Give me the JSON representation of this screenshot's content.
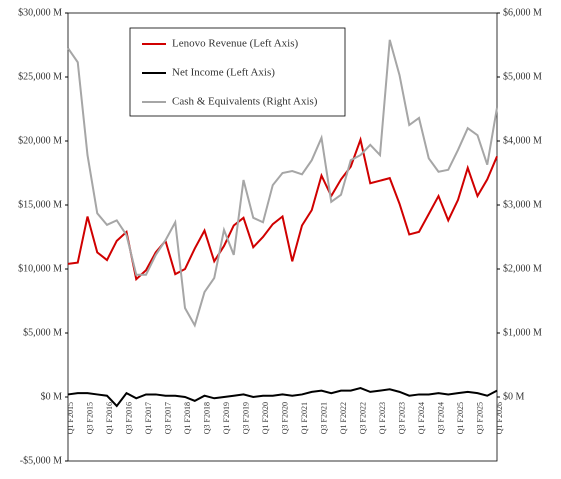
{
  "chart_data": {
    "type": "line",
    "categories": [
      "Q1 F2015",
      null,
      "Q3 F2015",
      null,
      "Q1 F2016",
      null,
      "Q3 F2016",
      null,
      "Q1 F2017",
      null,
      "Q3 F2017",
      null,
      "Q1 F2018",
      null,
      "Q3 F2018",
      null,
      "Q1 F2019",
      null,
      "Q3 F2019",
      null,
      "Q1 F2020",
      null,
      "Q3 F2020",
      null,
      "Q1 F2021",
      null,
      "Q3 F2021",
      null,
      "Q1 F2022",
      null,
      "Q3 F2022",
      null,
      "Q1 F2023",
      null,
      "Q3 F2023",
      null,
      "Q1 F2024",
      null,
      "Q3 F2024",
      null,
      "Q1 F2025",
      null,
      "Q3 F2025",
      null,
      "Q1 F2026"
    ],
    "series": [
      {
        "name": "Lenovo Revenue (Left Axis)",
        "color": "#d00000",
        "axis": "y",
        "values": [
          10400,
          10500,
          14100,
          11300,
          10700,
          12200,
          12900,
          9200,
          9900,
          11300,
          12200,
          9600,
          10000,
          11600,
          13000,
          10600,
          11800,
          13400,
          14000,
          11700,
          12500,
          13500,
          14100,
          10600,
          13400,
          14600,
          17300,
          15700,
          17000,
          18000,
          20100,
          16700,
          16900,
          17100,
          15100,
          12700,
          12900,
          14300,
          15700,
          13800,
          15400,
          17900,
          15700,
          17000,
          18800
        ]
      },
      {
        "name": "Net Income (Left Axis)",
        "color": "#000000",
        "axis": "y",
        "values": [
          200,
          300,
          300,
          200,
          100,
          -700,
          300,
          -100,
          200,
          200,
          100,
          100,
          0,
          -300,
          100,
          -100,
          0,
          100,
          200,
          0,
          100,
          100,
          200,
          100,
          200,
          400,
          500,
          300,
          500,
          500,
          700,
          400,
          500,
          600,
          400,
          100,
          200,
          200,
          300,
          200,
          300,
          400,
          300,
          100,
          500
        ]
      },
      {
        "name": "Cash & Equivalents (Right Axis)",
        "color": "#a6a6a6",
        "axis": "y2",
        "values": [
          5450,
          5230,
          3780,
          2870,
          2690,
          2760,
          2530,
          1910,
          1910,
          2220,
          2450,
          2730,
          1390,
          1120,
          1640,
          1860,
          2610,
          2220,
          3390,
          2800,
          2730,
          3310,
          3500,
          3530,
          3480,
          3700,
          4050,
          3050,
          3160,
          3700,
          3780,
          3940,
          3780,
          5580,
          5030,
          4250,
          4360,
          3730,
          3520,
          3550,
          3860,
          4200,
          4090,
          3630,
          4520
        ]
      }
    ],
    "ylim": [
      -5000,
      30000
    ],
    "yticks": [
      {
        "value": -5000,
        "label": "-$5,000 M"
      },
      {
        "value": 0,
        "label": "$0 M"
      },
      {
        "value": 5000,
        "label": "$5,000 M"
      },
      {
        "value": 10000,
        "label": "$10,000 M"
      },
      {
        "value": 15000,
        "label": "$15,000 M"
      },
      {
        "value": 20000,
        "label": "$20,000 M"
      },
      {
        "value": 25000,
        "label": "$25,000 M"
      },
      {
        "value": 30000,
        "label": "$30,000 M"
      }
    ],
    "y2lim": [
      -1000,
      6000
    ],
    "y2ticks": [
      {
        "value": 0,
        "label": "$0 M"
      },
      {
        "value": 1000,
        "label": "$1,000 M"
      },
      {
        "value": 2000,
        "label": "$2,000 M"
      },
      {
        "value": 3000,
        "label": "$3,000 M"
      },
      {
        "value": 4000,
        "label": "$4,000 M"
      },
      {
        "value": 5000,
        "label": "$5,000 M"
      },
      {
        "value": 6000,
        "label": "$6,000 M"
      }
    ],
    "grid": false
  }
}
